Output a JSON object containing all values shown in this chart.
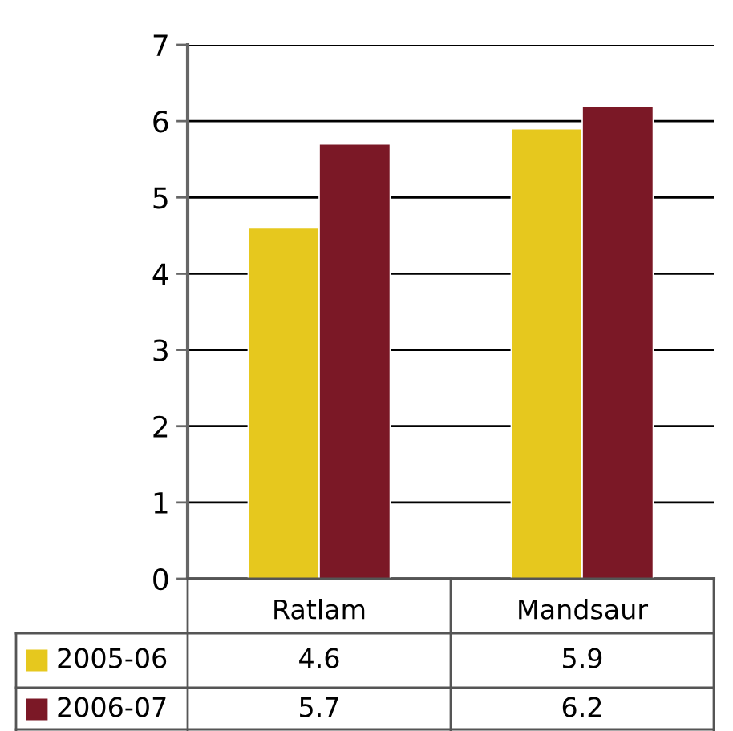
{
  "chart_data": {
    "type": "bar",
    "categories": [
      "Ratlam",
      "Mandsaur"
    ],
    "series": [
      {
        "name": "2005-06",
        "color": "#e6c81e",
        "values": [
          4.6,
          5.9
        ]
      },
      {
        "name": "2006-07",
        "color": "#7b1826",
        "values": [
          5.7,
          6.2
        ]
      }
    ],
    "ylim": [
      0,
      7
    ],
    "yticks": [
      0,
      1,
      2,
      3,
      4,
      5,
      6,
      7
    ],
    "grid": "y",
    "legend": "bottom",
    "data_labels": true
  }
}
